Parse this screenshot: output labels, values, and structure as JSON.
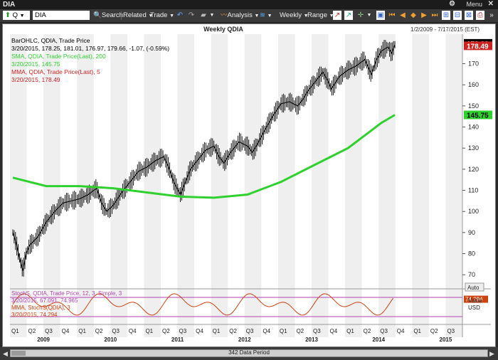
{
  "window": {
    "title": "DIA",
    "menu_label": "Menu"
  },
  "toolbar": {
    "arrow_value": "Q",
    "symbol_value": "DIA",
    "search_label": "Search",
    "related_label": "Related",
    "trade_label": "Trade",
    "analysis_label": "Analysis",
    "period_label": "Weekly",
    "range_label": "Range"
  },
  "chart": {
    "title": "Weekly QDIA",
    "date_range": "1/2/2009 - 7/17/2015 (EST)",
    "legend": [
      {
        "text": "BarOHLC, QDIA, Trade Price",
        "color": "#000000"
      },
      {
        "text": "3/20/2015, 178.25, 181.01, 176.97, 179.66, -1.07, (-0.59%)",
        "color": "#000000",
        "neg_color": "#cc0000"
      },
      {
        "text": "SMA, QDIA, Trade Price(Last), 200",
        "color": "#2fd12f"
      },
      {
        "text": "3/20/2015, 145.75",
        "color": "#2fd12f"
      },
      {
        "text": "MMA, QDIA, Trade Price(Last), 5",
        "color": "#cc2222"
      },
      {
        "text": "3/20/2015, 178.49",
        "color": "#cc2222"
      }
    ],
    "price_badges": [
      {
        "label": "179.66",
        "bg": "#000000",
        "fg": "#ffffff"
      },
      {
        "label": "178.49",
        "bg": "#cc2222",
        "fg": "#ffffff"
      },
      {
        "label": "145.75",
        "bg": "#2fd12f",
        "fg": "#000000"
      }
    ],
    "stoch_legend": [
      {
        "text": "StochS, QDIA, Trade Price, 12, 3, Simple, 3",
        "color": "#b144b1"
      },
      {
        "text": "3/20/2015, 67.091, 74.965",
        "color": "#b144b1"
      },
      {
        "text": "MMA, StochS(QDIA), 3",
        "color": "#cc4411"
      },
      {
        "text": "3/20/2015, 74.294",
        "color": "#cc4411"
      }
    ],
    "stoch_badge": "74.294",
    "stoch_axis": [
      "Value",
      "USD"
    ],
    "auto_label": "Auto",
    "data_period": "342 Data Period"
  },
  "chart_data": {
    "type": "line",
    "title": "Weekly QDIA",
    "y_axis": {
      "ticks": [
        70,
        80,
        90,
        100,
        110,
        120,
        130,
        140,
        150,
        160,
        170
      ],
      "ylim": [
        64,
        184
      ]
    },
    "x_axis": {
      "quarters": [
        "Q1",
        "Q2",
        "Q3",
        "Q4",
        "Q1",
        "Q2",
        "Q3",
        "Q4",
        "Q1",
        "Q2",
        "Q3",
        "Q4",
        "Q1",
        "Q2",
        "Q3",
        "Q4",
        "Q1",
        "Q2",
        "Q3",
        "Q4",
        "Q1",
        "Q2",
        "Q3",
        "Q4",
        "Q1",
        "Q2",
        "Q3"
      ],
      "years": [
        "2009",
        "2010",
        "2011",
        "2012",
        "2013",
        "2014",
        "2015"
      ]
    },
    "series": [
      {
        "name": "QDIA Trade Price",
        "color": "#000000",
        "points": [
          [
            0,
            90
          ],
          [
            0.2,
            85
          ],
          [
            0.4,
            78
          ],
          [
            0.6,
            72
          ],
          [
            0.8,
            80
          ],
          [
            1.0,
            84
          ],
          [
            1.5,
            88
          ],
          [
            2.0,
            95
          ],
          [
            2.5,
            100
          ],
          [
            3.0,
            104
          ],
          [
            3.5,
            105
          ],
          [
            4.0,
            106
          ],
          [
            4.5,
            108
          ],
          [
            5.0,
            111
          ],
          [
            5.3,
            104
          ],
          [
            5.6,
            100
          ],
          [
            6.0,
            103
          ],
          [
            6.5,
            109
          ],
          [
            7.0,
            114
          ],
          [
            7.5,
            119
          ],
          [
            8.0,
            121
          ],
          [
            8.5,
            124
          ],
          [
            9.0,
            126
          ],
          [
            9.3,
            121
          ],
          [
            9.6,
            114
          ],
          [
            10.0,
            108
          ],
          [
            10.3,
            114
          ],
          [
            10.6,
            120
          ],
          [
            11.0,
            124
          ],
          [
            11.5,
            129
          ],
          [
            12.0,
            131
          ],
          [
            12.3,
            126
          ],
          [
            12.6,
            123
          ],
          [
            13.0,
            128
          ],
          [
            13.5,
            133
          ],
          [
            14.0,
            131
          ],
          [
            14.3,
            128
          ],
          [
            14.6,
            132
          ],
          [
            15.0,
            138
          ],
          [
            15.5,
            145
          ],
          [
            16.0,
            151
          ],
          [
            16.5,
            152
          ],
          [
            17.0,
            150
          ],
          [
            17.3,
            153
          ],
          [
            17.6,
            157
          ],
          [
            18.0,
            161
          ],
          [
            18.5,
            166
          ],
          [
            18.8,
            162
          ],
          [
            19.0,
            158
          ],
          [
            19.5,
            164
          ],
          [
            20.0,
            167
          ],
          [
            20.5,
            169
          ],
          [
            21.0,
            172
          ],
          [
            21.4,
            165
          ],
          [
            21.7,
            172
          ],
          [
            22.0,
            176
          ],
          [
            22.4,
            178
          ],
          [
            22.6,
            175
          ],
          [
            22.8,
            179
          ]
        ]
      },
      {
        "name": "SMA 200",
        "color": "#2fd12f",
        "points": [
          [
            0,
            116
          ],
          [
            2,
            112
          ],
          [
            4,
            112
          ],
          [
            6,
            111
          ],
          [
            8,
            109
          ],
          [
            10,
            107
          ],
          [
            12,
            106.5
          ],
          [
            14,
            108
          ],
          [
            16,
            114
          ],
          [
            18,
            122
          ],
          [
            20,
            130
          ],
          [
            21,
            136
          ],
          [
            22,
            142
          ],
          [
            22.8,
            145.75
          ]
        ]
      }
    ],
    "stochastic": {
      "ylim": [
        0,
        100
      ],
      "overbought": 80,
      "oversold": 20,
      "last_value": 74.294
    }
  }
}
